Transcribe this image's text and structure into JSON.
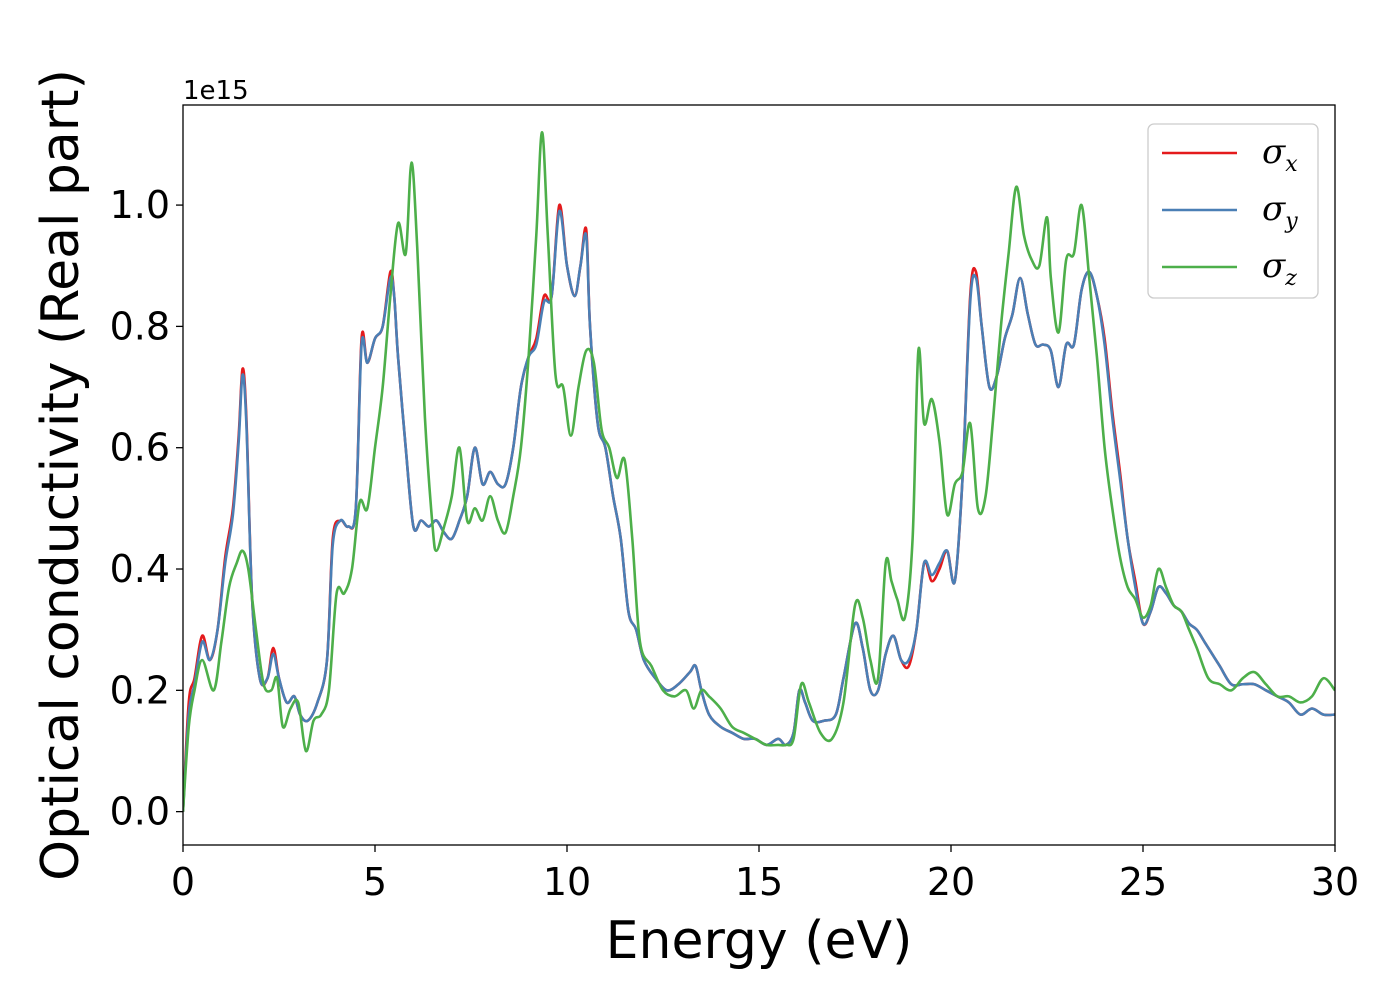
{
  "chart_data": {
    "type": "line",
    "title": "",
    "xlabel": "Energy (eV)",
    "ylabel": "Optical conductivity (Real part)",
    "y_offset_label": "1e15",
    "xlim": [
      0,
      30
    ],
    "ylim": [
      -0.055,
      1.165
    ],
    "xticks": [
      0,
      5,
      10,
      15,
      20,
      25,
      30
    ],
    "xtick_labels": [
      "0",
      "5",
      "10",
      "15",
      "20",
      "25",
      "30"
    ],
    "yticks": [
      0.0,
      0.2,
      0.4,
      0.6,
      0.8,
      1.0
    ],
    "ytick_labels": [
      "0.0",
      "0.2",
      "0.4",
      "0.6",
      "0.8",
      "1.0"
    ],
    "grid": false,
    "legend_position": "top-right",
    "series": [
      {
        "name": "σx",
        "symbol": "σ",
        "subscript": "x",
        "color": "#e41a1c",
        "x": [
          0,
          0.15,
          0.3,
          0.5,
          0.7,
          0.9,
          1.1,
          1.3,
          1.45,
          1.55,
          1.65,
          1.8,
          2.0,
          2.2,
          2.35,
          2.5,
          2.7,
          2.9,
          3.05,
          3.25,
          3.5,
          3.75,
          3.9,
          4.1,
          4.3,
          4.5,
          4.65,
          4.8,
          5.0,
          5.2,
          5.4,
          5.5,
          5.6,
          5.8,
          6.0,
          6.2,
          6.4,
          6.6,
          6.8,
          7.0,
          7.2,
          7.4,
          7.6,
          7.8,
          8.0,
          8.2,
          8.4,
          8.6,
          8.8,
          9.0,
          9.2,
          9.4,
          9.6,
          9.8,
          10.0,
          10.2,
          10.35,
          10.5,
          10.6,
          10.8,
          11.0,
          11.2,
          11.4,
          11.6,
          11.8,
          12.0,
          12.3,
          12.6,
          12.9,
          13.2,
          13.35,
          13.5,
          13.7,
          14.0,
          14.3,
          14.6,
          14.9,
          15.2,
          15.5,
          15.7,
          15.9,
          16.05,
          16.2,
          16.4,
          16.7,
          17.0,
          17.2,
          17.5,
          17.7,
          17.9,
          18.1,
          18.3,
          18.5,
          18.7,
          18.9,
          19.1,
          19.3,
          19.5,
          19.7,
          19.9,
          20.1,
          20.3,
          20.5,
          20.65,
          20.8,
          21.0,
          21.2,
          21.4,
          21.6,
          21.8,
          22.0,
          22.2,
          22.4,
          22.6,
          22.8,
          23.0,
          23.2,
          23.4,
          23.6,
          23.8,
          24.0,
          24.2,
          24.4,
          24.6,
          24.8,
          25.0,
          25.2,
          25.4,
          25.6,
          25.8,
          26.0,
          26.2,
          26.4,
          26.6,
          26.8,
          27.0,
          27.3,
          27.6,
          27.9,
          28.2,
          28.5,
          28.8,
          29.1,
          29.4,
          29.7,
          30.0
        ],
        "y": [
          0.0,
          0.18,
          0.22,
          0.29,
          0.25,
          0.3,
          0.42,
          0.5,
          0.62,
          0.73,
          0.65,
          0.35,
          0.22,
          0.22,
          0.27,
          0.22,
          0.18,
          0.19,
          0.16,
          0.15,
          0.18,
          0.25,
          0.45,
          0.48,
          0.47,
          0.5,
          0.78,
          0.74,
          0.78,
          0.8,
          0.89,
          0.85,
          0.75,
          0.6,
          0.47,
          0.48,
          0.47,
          0.48,
          0.46,
          0.45,
          0.48,
          0.52,
          0.6,
          0.54,
          0.56,
          0.54,
          0.54,
          0.6,
          0.7,
          0.75,
          0.78,
          0.85,
          0.85,
          1.0,
          0.9,
          0.85,
          0.9,
          0.96,
          0.8,
          0.64,
          0.6,
          0.52,
          0.45,
          0.33,
          0.3,
          0.25,
          0.22,
          0.2,
          0.21,
          0.23,
          0.24,
          0.2,
          0.16,
          0.14,
          0.13,
          0.12,
          0.12,
          0.11,
          0.12,
          0.11,
          0.13,
          0.2,
          0.18,
          0.15,
          0.15,
          0.16,
          0.22,
          0.31,
          0.27,
          0.2,
          0.2,
          0.26,
          0.29,
          0.25,
          0.24,
          0.3,
          0.41,
          0.38,
          0.4,
          0.43,
          0.38,
          0.55,
          0.85,
          0.89,
          0.8,
          0.7,
          0.72,
          0.78,
          0.82,
          0.88,
          0.82,
          0.77,
          0.77,
          0.76,
          0.7,
          0.77,
          0.77,
          0.86,
          0.89,
          0.85,
          0.78,
          0.66,
          0.56,
          0.45,
          0.38,
          0.31,
          0.33,
          0.37,
          0.36,
          0.34,
          0.33,
          0.31,
          0.3,
          0.28,
          0.26,
          0.24,
          0.21,
          0.21,
          0.21,
          0.2,
          0.19,
          0.18,
          0.16,
          0.17,
          0.16,
          0.16
        ]
      },
      {
        "name": "σy",
        "symbol": "σ",
        "subscript": "y",
        "color": "#4a7fb5",
        "x": [
          0,
          0.15,
          0.3,
          0.5,
          0.7,
          0.9,
          1.1,
          1.3,
          1.45,
          1.55,
          1.65,
          1.8,
          2.0,
          2.2,
          2.35,
          2.5,
          2.7,
          2.9,
          3.05,
          3.25,
          3.5,
          3.75,
          3.9,
          4.1,
          4.3,
          4.5,
          4.65,
          4.8,
          5.0,
          5.2,
          5.4,
          5.5,
          5.6,
          5.8,
          6.0,
          6.2,
          6.4,
          6.6,
          6.8,
          7.0,
          7.2,
          7.4,
          7.6,
          7.8,
          8.0,
          8.2,
          8.4,
          8.6,
          8.8,
          9.0,
          9.2,
          9.4,
          9.6,
          9.8,
          10.0,
          10.2,
          10.35,
          10.5,
          10.6,
          10.8,
          11.0,
          11.2,
          11.4,
          11.6,
          11.8,
          12.0,
          12.3,
          12.6,
          12.9,
          13.2,
          13.35,
          13.5,
          13.7,
          14.0,
          14.3,
          14.6,
          14.9,
          15.2,
          15.5,
          15.7,
          15.9,
          16.05,
          16.2,
          16.4,
          16.7,
          17.0,
          17.2,
          17.5,
          17.7,
          17.9,
          18.1,
          18.3,
          18.5,
          18.7,
          18.9,
          19.1,
          19.3,
          19.5,
          19.7,
          19.9,
          20.1,
          20.3,
          20.5,
          20.65,
          20.8,
          21.0,
          21.2,
          21.4,
          21.6,
          21.8,
          22.0,
          22.2,
          22.4,
          22.6,
          22.8,
          23.0,
          23.2,
          23.4,
          23.6,
          23.8,
          24.0,
          24.2,
          24.4,
          24.6,
          24.8,
          25.0,
          25.2,
          25.4,
          25.6,
          25.8,
          26.0,
          26.2,
          26.4,
          26.6,
          26.8,
          27.0,
          27.3,
          27.6,
          27.9,
          28.2,
          28.5,
          28.8,
          29.1,
          29.4,
          29.7,
          30.0
        ],
        "y": [
          0.0,
          0.16,
          0.21,
          0.28,
          0.25,
          0.3,
          0.41,
          0.49,
          0.61,
          0.72,
          0.64,
          0.35,
          0.22,
          0.22,
          0.26,
          0.22,
          0.18,
          0.19,
          0.16,
          0.15,
          0.18,
          0.25,
          0.44,
          0.48,
          0.47,
          0.5,
          0.77,
          0.74,
          0.78,
          0.8,
          0.88,
          0.85,
          0.75,
          0.6,
          0.47,
          0.48,
          0.47,
          0.48,
          0.46,
          0.45,
          0.48,
          0.52,
          0.6,
          0.54,
          0.56,
          0.54,
          0.54,
          0.6,
          0.7,
          0.75,
          0.77,
          0.84,
          0.85,
          0.99,
          0.9,
          0.85,
          0.9,
          0.95,
          0.8,
          0.64,
          0.6,
          0.52,
          0.45,
          0.33,
          0.3,
          0.25,
          0.22,
          0.2,
          0.21,
          0.23,
          0.24,
          0.2,
          0.16,
          0.14,
          0.13,
          0.12,
          0.12,
          0.11,
          0.12,
          0.11,
          0.13,
          0.2,
          0.18,
          0.15,
          0.15,
          0.16,
          0.22,
          0.31,
          0.27,
          0.2,
          0.2,
          0.26,
          0.29,
          0.25,
          0.25,
          0.3,
          0.41,
          0.39,
          0.41,
          0.43,
          0.38,
          0.55,
          0.84,
          0.88,
          0.8,
          0.7,
          0.72,
          0.78,
          0.82,
          0.88,
          0.82,
          0.77,
          0.77,
          0.76,
          0.7,
          0.77,
          0.77,
          0.86,
          0.89,
          0.85,
          0.77,
          0.65,
          0.55,
          0.45,
          0.37,
          0.31,
          0.33,
          0.37,
          0.36,
          0.34,
          0.33,
          0.31,
          0.3,
          0.28,
          0.26,
          0.24,
          0.21,
          0.21,
          0.21,
          0.2,
          0.19,
          0.18,
          0.16,
          0.17,
          0.16,
          0.16
        ]
      },
      {
        "name": "σz",
        "symbol": "σ",
        "subscript": "z",
        "color": "#4daf4a",
        "x": [
          0,
          0.15,
          0.3,
          0.5,
          0.8,
          1.0,
          1.2,
          1.4,
          1.55,
          1.7,
          1.9,
          2.1,
          2.3,
          2.45,
          2.6,
          2.8,
          3.0,
          3.2,
          3.4,
          3.6,
          3.8,
          4.0,
          4.2,
          4.4,
          4.6,
          4.8,
          5.0,
          5.2,
          5.4,
          5.6,
          5.8,
          5.95,
          6.1,
          6.3,
          6.5,
          6.6,
          6.8,
          7.0,
          7.2,
          7.4,
          7.6,
          7.8,
          8.0,
          8.2,
          8.4,
          8.6,
          8.8,
          9.0,
          9.2,
          9.35,
          9.5,
          9.7,
          9.9,
          10.1,
          10.3,
          10.5,
          10.7,
          10.9,
          11.1,
          11.3,
          11.5,
          11.7,
          11.9,
          12.2,
          12.5,
          12.8,
          13.1,
          13.3,
          13.5,
          13.7,
          14.0,
          14.3,
          14.6,
          14.9,
          15.2,
          15.5,
          15.7,
          15.9,
          16.1,
          16.3,
          16.6,
          16.9,
          17.2,
          17.5,
          17.7,
          17.9,
          18.1,
          18.3,
          18.45,
          18.6,
          18.8,
          19.0,
          19.15,
          19.3,
          19.5,
          19.7,
          19.9,
          20.1,
          20.3,
          20.5,
          20.7,
          20.9,
          21.1,
          21.3,
          21.5,
          21.7,
          21.9,
          22.1,
          22.3,
          22.5,
          22.6,
          22.8,
          23.0,
          23.2,
          23.4,
          23.6,
          23.8,
          24.0,
          24.2,
          24.4,
          24.6,
          24.8,
          25.0,
          25.2,
          25.4,
          25.6,
          25.8,
          26.0,
          26.2,
          26.4,
          26.7,
          27.0,
          27.3,
          27.6,
          27.9,
          28.2,
          28.5,
          28.8,
          29.1,
          29.4,
          29.7,
          30.0
        ],
        "y": [
          0.0,
          0.14,
          0.2,
          0.25,
          0.2,
          0.28,
          0.37,
          0.41,
          0.43,
          0.4,
          0.3,
          0.21,
          0.2,
          0.22,
          0.14,
          0.17,
          0.18,
          0.1,
          0.15,
          0.16,
          0.2,
          0.36,
          0.36,
          0.4,
          0.51,
          0.5,
          0.6,
          0.7,
          0.85,
          0.97,
          0.92,
          1.07,
          0.93,
          0.65,
          0.47,
          0.43,
          0.47,
          0.52,
          0.6,
          0.48,
          0.5,
          0.48,
          0.52,
          0.48,
          0.46,
          0.52,
          0.6,
          0.75,
          0.95,
          1.12,
          0.95,
          0.72,
          0.7,
          0.62,
          0.7,
          0.76,
          0.74,
          0.63,
          0.6,
          0.55,
          0.58,
          0.45,
          0.28,
          0.24,
          0.2,
          0.19,
          0.2,
          0.17,
          0.2,
          0.19,
          0.17,
          0.14,
          0.13,
          0.12,
          0.11,
          0.11,
          0.11,
          0.12,
          0.21,
          0.18,
          0.13,
          0.12,
          0.18,
          0.34,
          0.32,
          0.25,
          0.22,
          0.41,
          0.38,
          0.35,
          0.32,
          0.45,
          0.76,
          0.64,
          0.68,
          0.61,
          0.49,
          0.54,
          0.56,
          0.64,
          0.5,
          0.52,
          0.65,
          0.8,
          0.92,
          1.03,
          0.95,
          0.91,
          0.9,
          0.98,
          0.88,
          0.79,
          0.91,
          0.92,
          1.0,
          0.88,
          0.75,
          0.6,
          0.5,
          0.42,
          0.37,
          0.35,
          0.32,
          0.34,
          0.4,
          0.37,
          0.34,
          0.33,
          0.3,
          0.27,
          0.22,
          0.21,
          0.2,
          0.22,
          0.23,
          0.21,
          0.19,
          0.19,
          0.18,
          0.19,
          0.22,
          0.2
        ]
      }
    ]
  }
}
